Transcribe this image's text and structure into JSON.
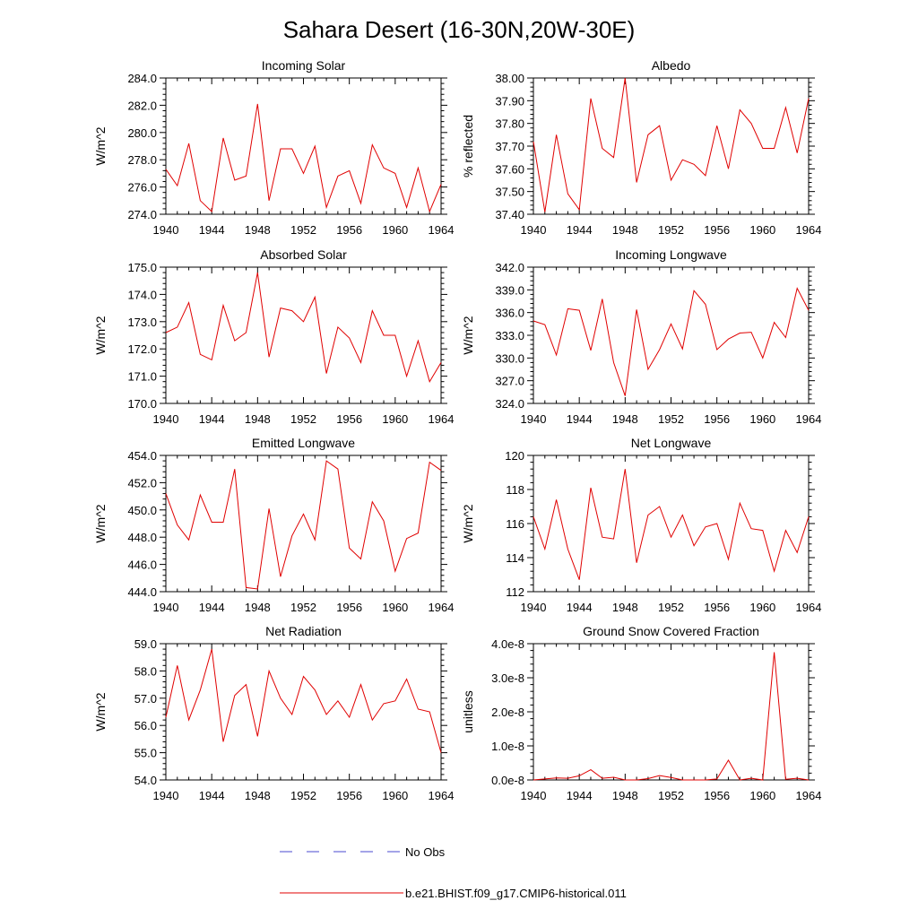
{
  "title": "Sahara Desert (16-30N,20W-30E)",
  "legend": {
    "obs_label": "No Obs",
    "model_label": "b.e21.BHIST.f09_g17.CMIP6-historical.011",
    "obs_color": "#4a4ad0",
    "model_color": "#e00000"
  },
  "chart_data": [
    {
      "type": "line",
      "title": "Incoming Solar",
      "ylabel": "W/m^2",
      "xlim": [
        1940,
        1964
      ],
      "ylim": [
        274.0,
        284.0
      ],
      "xticks": [
        "1940",
        "1944",
        "1948",
        "1952",
        "1956",
        "1960",
        "1964"
      ],
      "yticks": [
        "274.0",
        "276.0",
        "278.0",
        "280.0",
        "282.0",
        "284.0"
      ],
      "x": [
        1940,
        1941,
        1942,
        1943,
        1944,
        1945,
        1946,
        1947,
        1948,
        1949,
        1950,
        1951,
        1952,
        1953,
        1954,
        1955,
        1956,
        1957,
        1958,
        1959,
        1960,
        1961,
        1962,
        1963,
        1964
      ],
      "series": [
        {
          "name": "b.e21.BHIST.f09_g17.CMIP6-historical.011",
          "values": [
            277.3,
            276.1,
            279.2,
            275.0,
            274.2,
            279.6,
            276.5,
            276.8,
            282.1,
            275.0,
            278.8,
            278.8,
            277.0,
            279.0,
            274.5,
            276.8,
            277.2,
            274.8,
            279.1,
            277.4,
            277.0,
            274.5,
            277.4,
            274.2,
            276.2
          ]
        }
      ]
    },
    {
      "type": "line",
      "title": "Albedo",
      "ylabel": "% reflected",
      "xlim": [
        1940,
        1964
      ],
      "ylim": [
        37.4,
        38.0
      ],
      "xticks": [
        "1940",
        "1944",
        "1948",
        "1952",
        "1956",
        "1960",
        "1964"
      ],
      "yticks": [
        "37.40",
        "37.50",
        "37.60",
        "37.70",
        "37.80",
        "37.90",
        "38.00"
      ],
      "x": [
        1940,
        1941,
        1942,
        1943,
        1944,
        1945,
        1946,
        1947,
        1948,
        1949,
        1950,
        1951,
        1952,
        1953,
        1954,
        1955,
        1956,
        1957,
        1958,
        1959,
        1960,
        1961,
        1962,
        1963,
        1964
      ],
      "series": [
        {
          "name": "b.e21.BHIST.f09_g17.CMIP6-historical.011",
          "values": [
            37.72,
            37.41,
            37.75,
            37.49,
            37.42,
            37.91,
            37.69,
            37.65,
            38.0,
            37.54,
            37.75,
            37.79,
            37.55,
            37.64,
            37.62,
            37.57,
            37.79,
            37.6,
            37.86,
            37.8,
            37.69,
            37.69,
            37.87,
            37.67,
            37.91
          ]
        }
      ]
    },
    {
      "type": "line",
      "title": "Absorbed Solar",
      "ylabel": "W/m^2",
      "xlim": [
        1940,
        1964
      ],
      "ylim": [
        170.0,
        175.0
      ],
      "xticks": [
        "1940",
        "1944",
        "1948",
        "1952",
        "1956",
        "1960",
        "1964"
      ],
      "yticks": [
        "170.0",
        "171.0",
        "172.0",
        "173.0",
        "174.0",
        "175.0"
      ],
      "x": [
        1940,
        1941,
        1942,
        1943,
        1944,
        1945,
        1946,
        1947,
        1948,
        1949,
        1950,
        1951,
        1952,
        1953,
        1954,
        1955,
        1956,
        1957,
        1958,
        1959,
        1960,
        1961,
        1962,
        1963,
        1964
      ],
      "series": [
        {
          "name": "b.e21.BHIST.f09_g17.CMIP6-historical.011",
          "values": [
            172.6,
            172.8,
            173.7,
            171.8,
            171.6,
            173.6,
            172.3,
            172.6,
            174.8,
            171.7,
            173.5,
            173.4,
            173.0,
            173.9,
            171.1,
            172.8,
            172.4,
            171.5,
            173.4,
            172.5,
            172.5,
            171.0,
            172.3,
            170.8,
            171.5
          ]
        }
      ]
    },
    {
      "type": "line",
      "title": "Incoming Longwave",
      "ylabel": "W/m^2",
      "xlim": [
        1940,
        1964
      ],
      "ylim": [
        324.0,
        342.0
      ],
      "xticks": [
        "1940",
        "1944",
        "1948",
        "1952",
        "1956",
        "1960",
        "1964"
      ],
      "yticks": [
        "324.0",
        "327.0",
        "330.0",
        "333.0",
        "336.0",
        "339.0",
        "342.0"
      ],
      "x": [
        1940,
        1941,
        1942,
        1943,
        1944,
        1945,
        1946,
        1947,
        1948,
        1949,
        1950,
        1951,
        1952,
        1953,
        1954,
        1955,
        1956,
        1957,
        1958,
        1959,
        1960,
        1961,
        1962,
        1963,
        1964
      ],
      "series": [
        {
          "name": "b.e21.BHIST.f09_g17.CMIP6-historical.011",
          "values": [
            334.9,
            334.4,
            330.4,
            336.5,
            336.3,
            331.0,
            337.8,
            329.4,
            325.0,
            336.4,
            328.5,
            331.1,
            334.5,
            331.2,
            338.9,
            337.1,
            331.1,
            332.5,
            333.3,
            333.4,
            330.0,
            334.7,
            332.7,
            339.2,
            336.3
          ]
        }
      ]
    },
    {
      "type": "line",
      "title": "Emitted Longwave",
      "ylabel": "W/m^2",
      "xlim": [
        1940,
        1964
      ],
      "ylim": [
        444.0,
        454.0
      ],
      "xticks": [
        "1940",
        "1944",
        "1948",
        "1952",
        "1956",
        "1960",
        "1964"
      ],
      "yticks": [
        "444.0",
        "446.0",
        "448.0",
        "450.0",
        "452.0",
        "454.0"
      ],
      "x": [
        1940,
        1941,
        1942,
        1943,
        1944,
        1945,
        1946,
        1947,
        1948,
        1949,
        1950,
        1951,
        1952,
        1953,
        1954,
        1955,
        1956,
        1957,
        1958,
        1959,
        1960,
        1961,
        1962,
        1963,
        1964
      ],
      "series": [
        {
          "name": "b.e21.BHIST.f09_g17.CMIP6-historical.011",
          "values": [
            451.2,
            448.9,
            447.8,
            451.1,
            449.1,
            449.1,
            453.0,
            444.3,
            444.2,
            450.1,
            445.1,
            448.1,
            449.7,
            447.8,
            453.6,
            453.0,
            447.2,
            446.4,
            450.6,
            449.2,
            445.5,
            447.9,
            448.3,
            453.5,
            452.9
          ]
        }
      ]
    },
    {
      "type": "line",
      "title": "Net Longwave",
      "ylabel": "W/m^2",
      "xlim": [
        1940,
        1964
      ],
      "ylim": [
        112,
        120
      ],
      "xticks": [
        "1940",
        "1944",
        "1948",
        "1952",
        "1956",
        "1960",
        "1964"
      ],
      "yticks": [
        "112",
        "114",
        "116",
        "118",
        "120"
      ],
      "x": [
        1940,
        1941,
        1942,
        1943,
        1944,
        1945,
        1946,
        1947,
        1948,
        1949,
        1950,
        1951,
        1952,
        1953,
        1954,
        1955,
        1956,
        1957,
        1958,
        1959,
        1960,
        1961,
        1962,
        1963,
        1964
      ],
      "series": [
        {
          "name": "b.e21.BHIST.f09_g17.CMIP6-historical.011",
          "values": [
            116.4,
            114.5,
            117.4,
            114.5,
            112.7,
            118.1,
            115.2,
            115.1,
            119.2,
            113.7,
            116.5,
            117.0,
            115.2,
            116.5,
            114.7,
            115.8,
            116.0,
            113.9,
            117.2,
            115.7,
            115.6,
            113.2,
            115.6,
            114.3,
            116.4
          ]
        }
      ]
    },
    {
      "type": "line",
      "title": "Net Radiation",
      "ylabel": "W/m^2",
      "xlim": [
        1940,
        1964
      ],
      "ylim": [
        54.0,
        59.0
      ],
      "xticks": [
        "1940",
        "1944",
        "1948",
        "1952",
        "1956",
        "1960",
        "1964"
      ],
      "yticks": [
        "54.0",
        "55.0",
        "56.0",
        "57.0",
        "58.0",
        "59.0"
      ],
      "x": [
        1940,
        1941,
        1942,
        1943,
        1944,
        1945,
        1946,
        1947,
        1948,
        1949,
        1950,
        1951,
        1952,
        1953,
        1954,
        1955,
        1956,
        1957,
        1958,
        1959,
        1960,
        1961,
        1962,
        1963,
        1964
      ],
      "series": [
        {
          "name": "b.e21.BHIST.f09_g17.CMIP6-historical.011",
          "values": [
            56.3,
            58.2,
            56.2,
            57.3,
            58.8,
            55.4,
            57.1,
            57.5,
            55.6,
            58.0,
            57.0,
            56.4,
            57.8,
            57.3,
            56.4,
            56.9,
            56.3,
            57.5,
            56.2,
            56.8,
            56.9,
            57.7,
            56.6,
            56.5,
            55.0
          ]
        }
      ]
    },
    {
      "type": "line",
      "title": "Ground Snow Covered Fraction",
      "ylabel": "unitless",
      "xlim": [
        1940,
        1964
      ],
      "ylim": [
        0,
        4e-08
      ],
      "xticks": [
        "1940",
        "1944",
        "1948",
        "1952",
        "1956",
        "1960",
        "1964"
      ],
      "yticks": [
        "0.0e-8",
        "1.0e-8",
        "2.0e-8",
        "3.0e-8",
        "4.0e-8"
      ],
      "x": [
        1940,
        1941,
        1942,
        1943,
        1944,
        1945,
        1946,
        1947,
        1948,
        1949,
        1950,
        1951,
        1952,
        1953,
        1954,
        1955,
        1956,
        1957,
        1958,
        1959,
        1960,
        1961,
        1962,
        1963,
        1964
      ],
      "series": [
        {
          "name": "b.e21.BHIST.f09_g17.CMIP6-historical.011",
          "values": [
            0,
            3e-10,
            6e-10,
            5e-10,
            1.2e-09,
            3e-09,
            5e-10,
            8e-10,
            0,
            0,
            4e-10,
            1.3e-09,
            7e-10,
            0,
            0,
            0,
            3e-10,
            5.8e-09,
            0,
            5e-10,
            0,
            3.75e-08,
            2e-10,
            5e-10,
            0
          ]
        }
      ]
    }
  ]
}
